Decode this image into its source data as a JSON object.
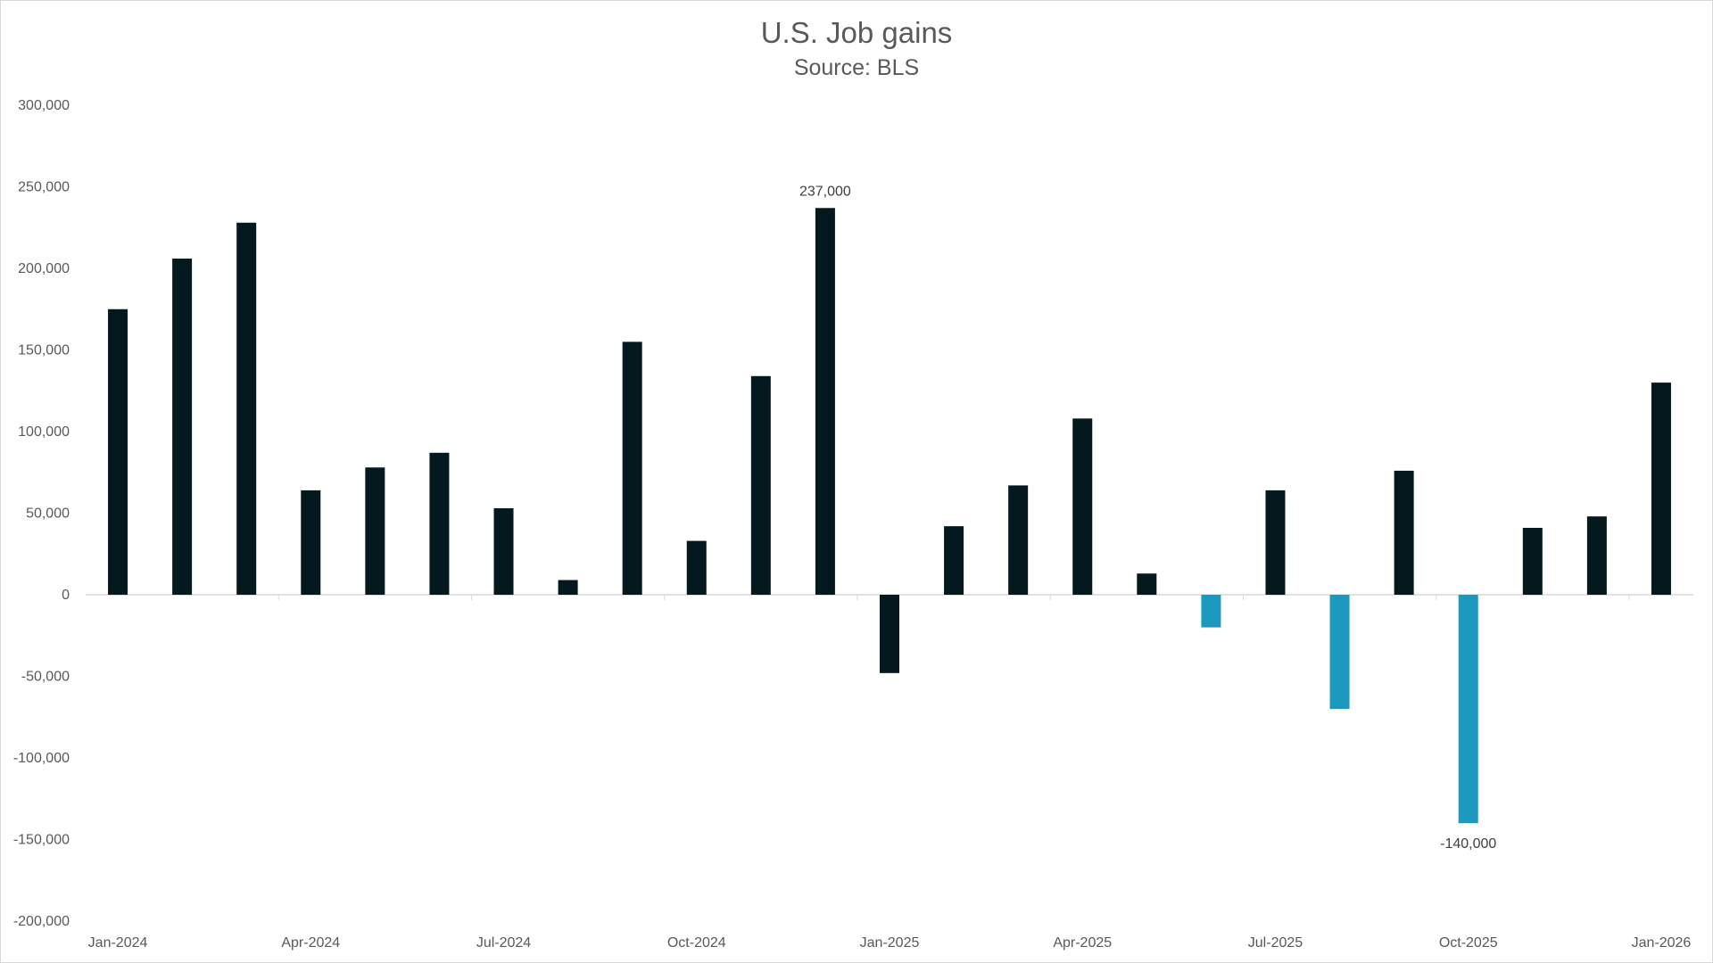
{
  "chart_data": {
    "type": "bar",
    "title": "U.S. Job gains",
    "subtitle": "Source: BLS",
    "xlabel": "",
    "ylabel": "",
    "ylim": [
      -200000,
      300000
    ],
    "yticks": [
      300000,
      250000,
      200000,
      150000,
      100000,
      50000,
      0,
      -50000,
      -100000,
      -150000,
      -200000
    ],
    "ytick_labels": [
      "300,000",
      "250,000",
      "200,000",
      "150,000",
      "100,000",
      "50,000",
      "0",
      "-50,000",
      "-100,000",
      "-150,000",
      "-200,000"
    ],
    "categories": [
      "Jan-2024",
      "Feb-2024",
      "Mar-2024",
      "Apr-2024",
      "May-2024",
      "Jun-2024",
      "Jul-2024",
      "Aug-2024",
      "Sep-2024",
      "Oct-2024",
      "Nov-2024",
      "Dec-2024",
      "Jan-2025",
      "Feb-2025",
      "Mar-2025",
      "Apr-2025",
      "May-2025",
      "Jun-2025",
      "Jul-2025",
      "Aug-2025",
      "Sep-2025",
      "Oct-2025",
      "Nov-2025",
      "Dec-2025",
      "Jan-2026"
    ],
    "x_tick_labels": [
      {
        "index": 0,
        "label": "Jan-2024"
      },
      {
        "index": 3,
        "label": "Apr-2024"
      },
      {
        "index": 6,
        "label": "Jul-2024"
      },
      {
        "index": 9,
        "label": "Oct-2024"
      },
      {
        "index": 12,
        "label": "Jan-2025"
      },
      {
        "index": 15,
        "label": "Apr-2025"
      },
      {
        "index": 18,
        "label": "Jul-2025"
      },
      {
        "index": 21,
        "label": "Oct-2025"
      },
      {
        "index": 24,
        "label": "Jan-2026"
      }
    ],
    "values": [
      175000,
      206000,
      228000,
      64000,
      78000,
      87000,
      53000,
      9000,
      155000,
      33000,
      134000,
      237000,
      -48000,
      42000,
      67000,
      108000,
      13000,
      -20000,
      64000,
      -70000,
      76000,
      -140000,
      41000,
      48000,
      130000
    ],
    "data_labels": [
      {
        "index": 11,
        "label": "237,000"
      },
      {
        "index": 21,
        "label": "-140,000"
      }
    ],
    "colors": {
      "bar_default": "#03191e",
      "bar_negative_highlight": "#1b99bf",
      "axis": "#d9d9d9",
      "text": "#595959"
    },
    "highlighted_indices": [
      17,
      19,
      21
    ],
    "grid": false,
    "legend": "none"
  }
}
